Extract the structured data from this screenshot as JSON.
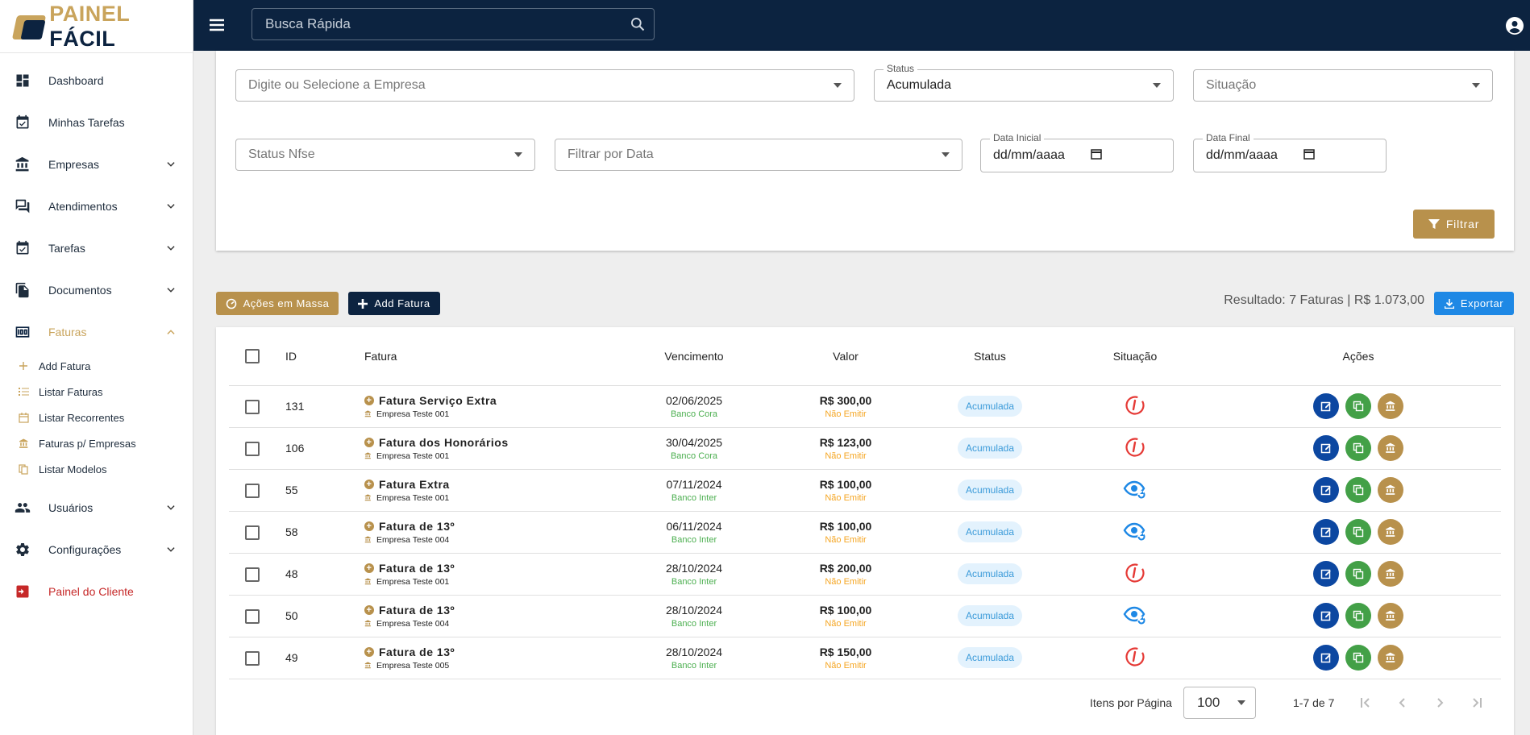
{
  "brand": {
    "part1": "PAINEL",
    "part2": "FÁCIL"
  },
  "topbar": {
    "search_placeholder": "Busca Rápida"
  },
  "sidebar": {
    "items": [
      {
        "label": "Dashboard",
        "icon": "dashboard-icon"
      },
      {
        "label": "Minhas Tarefas",
        "icon": "calendar-check-icon"
      },
      {
        "label": "Empresas",
        "icon": "bank-icon"
      },
      {
        "label": "Atendimentos",
        "icon": "forum-icon"
      },
      {
        "label": "Tarefas",
        "icon": "calendar-check-icon"
      },
      {
        "label": "Documentos",
        "icon": "file-copy-icon"
      },
      {
        "label": "Faturas",
        "icon": "money-icon"
      },
      {
        "label": "Usuários",
        "icon": "people-icon"
      },
      {
        "label": "Configurações",
        "icon": "gear-icon"
      },
      {
        "label": "Painel do Cliente",
        "icon": "exit-icon"
      }
    ],
    "faturas_sub": [
      {
        "label": "Add Fatura",
        "icon": "plus-icon"
      },
      {
        "label": "Listar Faturas",
        "icon": "list-icon"
      },
      {
        "label": "Listar Recorrentes",
        "icon": "calendar-icon"
      },
      {
        "label": "Faturas p/ Empresas",
        "icon": "bank-icon"
      },
      {
        "label": "Listar Modelos",
        "icon": "copy-icon"
      }
    ]
  },
  "filters": {
    "empresa_placeholder": "Digite ou Selecione a Empresa",
    "status_label": "Status",
    "status_value": "Acumulada",
    "situacao_placeholder": "Situação",
    "status_nfse_placeholder": "Status Nfse",
    "filtrar_data_placeholder": "Filtrar por Data",
    "data_inicial_label": "Data Inicial",
    "data_inicial_value": "dd/mm/aaaa",
    "data_final_label": "Data Final",
    "data_final_value": "dd/mm/aaaa",
    "filtrar_button": "Filtrar"
  },
  "actions": {
    "massa_button": "Ações em Massa",
    "add_button": "Add Fatura",
    "result_text": "Resultado: 7 Faturas | R$ 1.073,00",
    "export_button": "Exportar"
  },
  "table": {
    "headers": {
      "id": "ID",
      "fatura": "Fatura",
      "vencimento": "Vencimento",
      "valor": "Valor",
      "status": "Status",
      "situacao": "Situação",
      "acoes": "Ações"
    },
    "rows": [
      {
        "id": "131",
        "fatura": "Fatura Serviço Extra",
        "empresa": "Empresa Teste 001",
        "vencimento": "02/06/2025",
        "banco": "Banco Cora",
        "valor": "R$ 300,00",
        "emitir": "Não Emitir",
        "status": "Acumulada",
        "situacao": "overdue"
      },
      {
        "id": "106",
        "fatura": "Fatura dos Honorários",
        "empresa": "Empresa Teste 001",
        "vencimento": "30/04/2025",
        "banco": "Banco Cora",
        "valor": "R$ 123,00",
        "emitir": "Não Emitir",
        "status": "Acumulada",
        "situacao": "overdue"
      },
      {
        "id": "55",
        "fatura": "Fatura Extra",
        "empresa": "Empresa Teste 001",
        "vencimento": "07/11/2024",
        "banco": "Banco Inter",
        "valor": "R$ 100,00",
        "emitir": "Não Emitir",
        "status": "Acumulada",
        "situacao": "viewed"
      },
      {
        "id": "58",
        "fatura": "Fatura de 13º",
        "empresa": "Empresa Teste 004",
        "vencimento": "06/11/2024",
        "banco": "Banco Inter",
        "valor": "R$ 100,00",
        "emitir": "Não Emitir",
        "status": "Acumulada",
        "situacao": "viewed"
      },
      {
        "id": "48",
        "fatura": "Fatura de 13º",
        "empresa": "Empresa Teste 001",
        "vencimento": "28/10/2024",
        "banco": "Banco Inter",
        "valor": "R$ 200,00",
        "emitir": "Não Emitir",
        "status": "Acumulada",
        "situacao": "overdue"
      },
      {
        "id": "50",
        "fatura": "Fatura de 13º",
        "empresa": "Empresa Teste 004",
        "vencimento": "28/10/2024",
        "banco": "Banco Inter",
        "valor": "R$ 100,00",
        "emitir": "Não Emitir",
        "status": "Acumulada",
        "situacao": "viewed"
      },
      {
        "id": "49",
        "fatura": "Fatura de 13º",
        "empresa": "Empresa Teste 005",
        "vencimento": "28/10/2024",
        "banco": "Banco Inter",
        "valor": "R$ 150,00",
        "emitir": "Não Emitir",
        "status": "Acumulada",
        "situacao": "overdue"
      }
    ]
  },
  "pagination": {
    "items_per_page_label": "Itens por Página",
    "items_per_page": "100",
    "range": "1-7 de 7"
  },
  "colors": {
    "navy": "#0c2340",
    "gold": "#b8914c",
    "blue": "#1e88e5",
    "green": "#43a047",
    "red": "#e53935"
  }
}
